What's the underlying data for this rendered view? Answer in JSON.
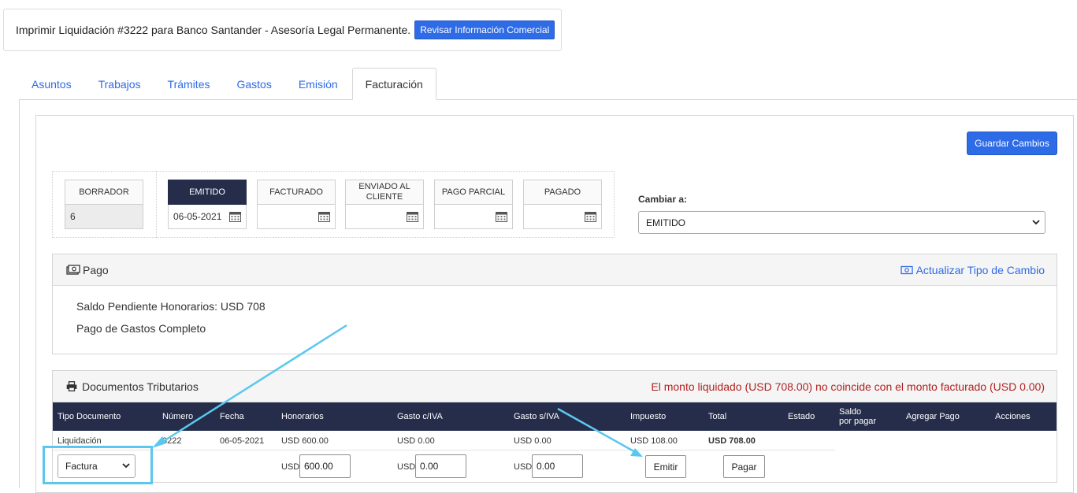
{
  "header": {
    "title": "Imprimir Liquidación #3222 para Banco Santander - Asesoría Legal Permanente.",
    "info_button": "Revisar Información Comercial"
  },
  "tabs": [
    {
      "label": "Asuntos",
      "active": false
    },
    {
      "label": "Trabajos",
      "active": false
    },
    {
      "label": "Trámites",
      "active": false
    },
    {
      "label": "Gastos",
      "active": false
    },
    {
      "label": "Emisión",
      "active": false
    },
    {
      "label": "Facturación",
      "active": true
    }
  ],
  "save_button": "Guardar Cambios",
  "statuses": [
    {
      "label": "BORRADOR",
      "value": "6"
    },
    {
      "label": "EMITIDO",
      "value": "06-05-2021"
    },
    {
      "label": "FACTURADO",
      "value": ""
    },
    {
      "label": "ENVIADO AL CLIENTE",
      "value": ""
    },
    {
      "label": "PAGO PARCIAL",
      "value": ""
    },
    {
      "label": "PAGADO",
      "value": ""
    }
  ],
  "change_to": {
    "label": "Cambiar a:",
    "value": "EMITIDO"
  },
  "payment": {
    "title": "Pago",
    "exchange_link": "Actualizar Tipo de Cambio",
    "pending": "Saldo Pendiente Honorarios: USD 708",
    "expenses": "Pago de Gastos Completo"
  },
  "tax_docs": {
    "title": "Documentos Tributarios",
    "warning": "El monto liquidado (USD 708.00) no coincide con el monto facturado (USD 0.00)",
    "columns": {
      "tipo": "Tipo Documento",
      "numero": "Número",
      "fecha": "Fecha",
      "honorarios": "Honorarios",
      "gasto_c": "Gasto c/IVA",
      "gasto_s": "Gasto s/IVA",
      "impuesto": "Impuesto",
      "total": "Total",
      "estado": "Estado",
      "saldo_1": "Saldo",
      "saldo_2": "por pagar",
      "agregar": "Agregar Pago",
      "acciones": "Acciones"
    },
    "row": {
      "tipo": "Liquidación",
      "numero": "3222",
      "fecha": "06-05-2021",
      "honorarios": "USD 600.00",
      "gasto_c": "USD 0.00",
      "gasto_s": "USD 0.00",
      "impuesto": "USD 108.00",
      "total": "USD 708.00"
    },
    "input_row": {
      "doc_type": "Factura",
      "currency": "USD",
      "honorarios": "600.00",
      "gasto_c": "0.00",
      "gasto_s": "0.00",
      "emit_button": "Emitir",
      "pay_button": "Pagar"
    }
  },
  "colors": {
    "accent": "#2e6be6",
    "header_dark": "#252d4a",
    "warning": "#b22222",
    "annotation": "#5ac8ee"
  }
}
